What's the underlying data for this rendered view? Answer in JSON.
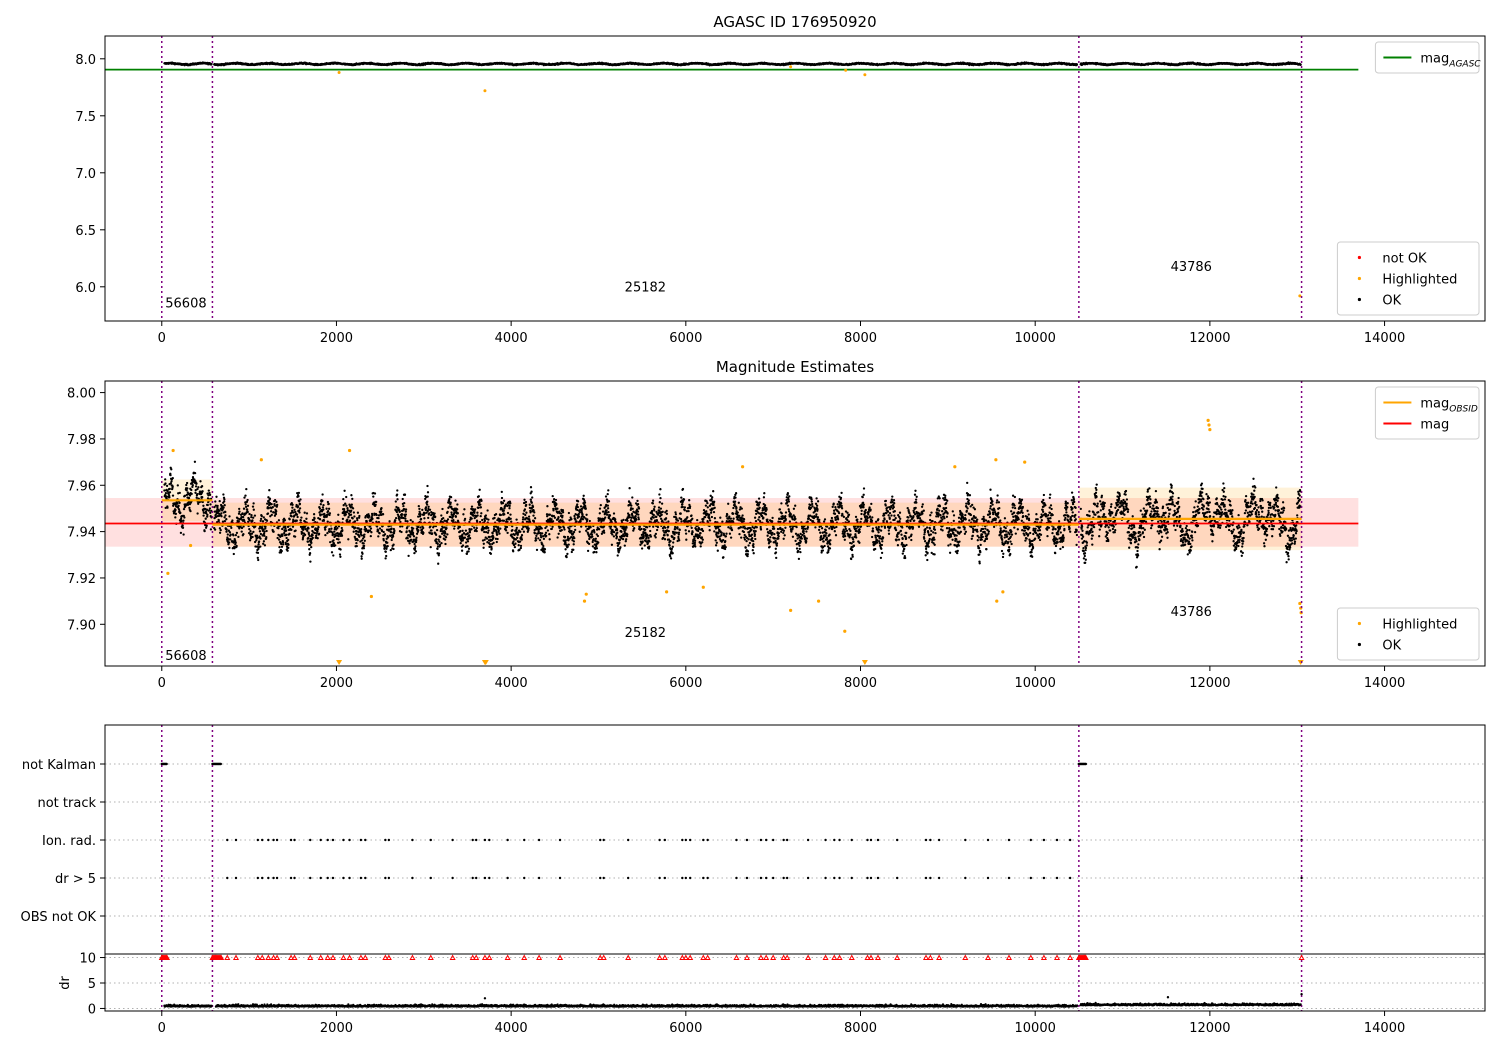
{
  "chart_data": [
    {
      "type": "scatter",
      "title": "AGASC ID 176950920",
      "xlim": [
        -650,
        15150
      ],
      "ylim": [
        5.7,
        8.2
      ],
      "xticks": [
        0,
        2000,
        4000,
        6000,
        8000,
        10000,
        12000,
        14000
      ],
      "yticks": [
        6.0,
        6.5,
        7.0,
        7.5,
        8.0
      ],
      "ytick_labels": [
        "6.0",
        "6.5",
        "7.0",
        "7.5",
        "8.0"
      ],
      "vlines": [
        0,
        580,
        10500,
        13050
      ],
      "obsid_labels": [
        {
          "text": "56608",
          "x": 40,
          "y": 5.82
        },
        {
          "text": "25182",
          "x": 5300,
          "y": 5.96
        },
        {
          "text": "43786",
          "x": 11550,
          "y": 6.14
        }
      ],
      "hlines": [
        {
          "name": "mag",
          "subscript": "AGASC",
          "y": 7.905,
          "x_range": [
            -650,
            13700
          ],
          "color": "#008000"
        }
      ],
      "band": {
        "center": 7.955,
        "amplitude": 0.012
      },
      "highlighted": [
        [
          2030,
          7.88
        ],
        [
          3700,
          7.72
        ],
        [
          7200,
          7.93
        ],
        [
          7830,
          7.9
        ],
        [
          8050,
          7.86
        ],
        [
          13030,
          5.92
        ]
      ],
      "legends": [
        {
          "position": "top-right",
          "entries": [
            {
              "label": "mag",
              "sub": "AGASC",
              "kind": "line",
              "color": "#008000"
            }
          ]
        },
        {
          "position": "lower-right",
          "entries": [
            {
              "label": "not OK",
              "kind": "dot",
              "color": "#ff0000"
            },
            {
              "label": "Highlighted",
              "kind": "dot",
              "color": "#ffa500"
            },
            {
              "label": "OK",
              "kind": "dot",
              "color": "#000000"
            }
          ]
        }
      ]
    },
    {
      "type": "scatter",
      "title": "Magnitude Estimates",
      "xlim": [
        -650,
        15150
      ],
      "ylim": [
        7.882,
        8.005
      ],
      "xticks": [
        0,
        2000,
        4000,
        6000,
        8000,
        10000,
        12000,
        14000
      ],
      "yticks": [
        7.9,
        7.92,
        7.94,
        7.96,
        7.98,
        8.0
      ],
      "ytick_labels": [
        "7.90",
        "7.92",
        "7.94",
        "7.96",
        "7.98",
        "8.00"
      ],
      "vlines": [
        0,
        580,
        10500,
        13050
      ],
      "obsid_labels": [
        {
          "text": "56608",
          "x": 40,
          "y": 7.8845
        },
        {
          "text": "25182",
          "x": 5300,
          "y": 7.8945
        },
        {
          "text": "43786",
          "x": 11550,
          "y": 7.9035
        }
      ],
      "mag": {
        "name": "mag",
        "y": 7.9435,
        "x_range": [
          -650,
          13700
        ],
        "color": "#ff0000",
        "band": [
          7.9335,
          7.9545
        ]
      },
      "mag_obsid": {
        "name": "mag",
        "subscript": "OBSID",
        "color": "#ffa500",
        "segments": [
          {
            "x": [
              0,
              580
            ],
            "y": 7.9535,
            "band": [
              7.9445,
              7.9625
            ]
          },
          {
            "x": [
              580,
              10500
            ],
            "y": 7.943,
            "band": [
              7.9335,
              7.9525
            ]
          },
          {
            "x": [
              10500,
              13050
            ],
            "y": 7.9455,
            "band": [
              7.932,
              7.959
            ]
          }
        ]
      },
      "highlighted": [
        [
          70,
          7.922
        ],
        [
          130,
          7.975
        ],
        [
          330,
          7.934
        ],
        [
          1140,
          7.971
        ],
        [
          2150,
          7.975
        ],
        [
          2400,
          7.912
        ],
        [
          4840,
          7.91
        ],
        [
          4860,
          7.913
        ],
        [
          5780,
          7.914
        ],
        [
          6200,
          7.916
        ],
        [
          6650,
          7.968
        ],
        [
          7200,
          7.906
        ],
        [
          7520,
          7.91
        ],
        [
          7820,
          7.897
        ],
        [
          9080,
          7.968
        ],
        [
          9550,
          7.971
        ],
        [
          9560,
          7.91
        ],
        [
          9630,
          7.914
        ],
        [
          9880,
          7.97
        ],
        [
          11980,
          7.988
        ],
        [
          11990,
          7.986
        ],
        [
          12000,
          7.984
        ],
        [
          13030,
          7.909
        ],
        [
          13040,
          7.907
        ],
        [
          13045,
          7.905
        ]
      ],
      "clipped": [
        2030,
        3700,
        3710,
        8050,
        13040
      ],
      "legends": [
        {
          "position": "top-right",
          "entries": [
            {
              "label": "mag",
              "sub": "OBSID",
              "kind": "line",
              "color": "#ffa500"
            },
            {
              "label": "mag",
              "kind": "line",
              "color": "#ff0000"
            }
          ]
        },
        {
          "position": "lower-right",
          "entries": [
            {
              "label": "Highlighted",
              "kind": "dot",
              "color": "#ffa500"
            },
            {
              "label": "OK",
              "kind": "dot",
              "color": "#000000"
            }
          ]
        }
      ]
    },
    {
      "type": "scatter",
      "xlim": [
        -650,
        15150
      ],
      "xticks": [
        0,
        2000,
        4000,
        6000,
        8000,
        10000,
        12000,
        14000
      ],
      "flag_rows": [
        "not Kalman",
        "not track",
        "Ion. rad.",
        "dr > 5",
        "OBS not OK"
      ],
      "vlines": [
        0,
        580,
        10500,
        13050
      ],
      "not_kalman_ranges": [
        [
          0,
          60
        ],
        [
          580,
          680
        ],
        [
          10500,
          10580
        ]
      ],
      "ion_rad_x": [
        750,
        850,
        1100,
        1150,
        1220,
        1280,
        1320,
        1480,
        1520,
        1700,
        1820,
        1900,
        1960,
        2080,
        2150,
        2280,
        2330,
        2560,
        2600,
        2870,
        3080,
        3330,
        3560,
        3600,
        3700,
        3750,
        3960,
        4150,
        4320,
        4560,
        5020,
        5060,
        5340,
        5700,
        5760,
        5960,
        6000,
        6050,
        6200,
        6250,
        6580,
        6700,
        6860,
        6920,
        7000,
        7120,
        7160,
        7400,
        7600,
        7700,
        7760,
        7900,
        8080,
        8120,
        8200,
        8420,
        8750,
        8800,
        8900,
        9200,
        9460,
        9700,
        9950,
        10100,
        10250,
        10400,
        13050
      ],
      "dr": {
        "ylabel": "dr",
        "ylim": [
          -0.5,
          10.5
        ],
        "yticks": [
          0,
          5,
          10
        ],
        "ytick_labels": [
          "0",
          "5",
          "10"
        ],
        "outliers": [
          [
            3700,
            2.0
          ],
          [
            11520,
            2.2
          ],
          [
            13050,
            2.8
          ]
        ]
      }
    }
  ]
}
